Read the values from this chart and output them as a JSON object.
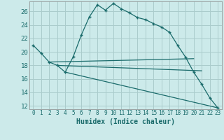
{
  "bg_color": "#cceaea",
  "grid_color": "#aacccc",
  "line_color": "#1a6b6b",
  "xlabel": "Humidex (Indice chaleur)",
  "ylim": [
    11.5,
    27.5
  ],
  "xlim": [
    -0.5,
    23.5
  ],
  "yticks": [
    12,
    14,
    16,
    18,
    20,
    22,
    24,
    26
  ],
  "xticks": [
    0,
    1,
    2,
    3,
    4,
    5,
    6,
    7,
    8,
    9,
    10,
    11,
    12,
    13,
    14,
    15,
    16,
    17,
    18,
    19,
    20,
    21,
    22,
    23
  ],
  "curve1_x": [
    0,
    1,
    2,
    3,
    4,
    5,
    6,
    7,
    8,
    9,
    10,
    11,
    12,
    13,
    14,
    15,
    16,
    17,
    18,
    19,
    20,
    21,
    22,
    23
  ],
  "curve1_y": [
    21.0,
    19.8,
    18.5,
    18.0,
    17.0,
    19.3,
    22.5,
    25.2,
    27.0,
    26.2,
    27.2,
    26.4,
    25.8,
    25.1,
    24.8,
    24.2,
    23.7,
    22.9,
    21.0,
    19.2,
    17.0,
    15.2,
    13.2,
    11.7
  ],
  "line2_x": [
    2,
    20
  ],
  "line2_y": [
    18.5,
    19.0
  ],
  "line3_x": [
    3,
    21
  ],
  "line3_y": [
    18.0,
    17.2
  ],
  "line4_x": [
    4,
    23
  ],
  "line4_y": [
    17.0,
    11.7
  ]
}
